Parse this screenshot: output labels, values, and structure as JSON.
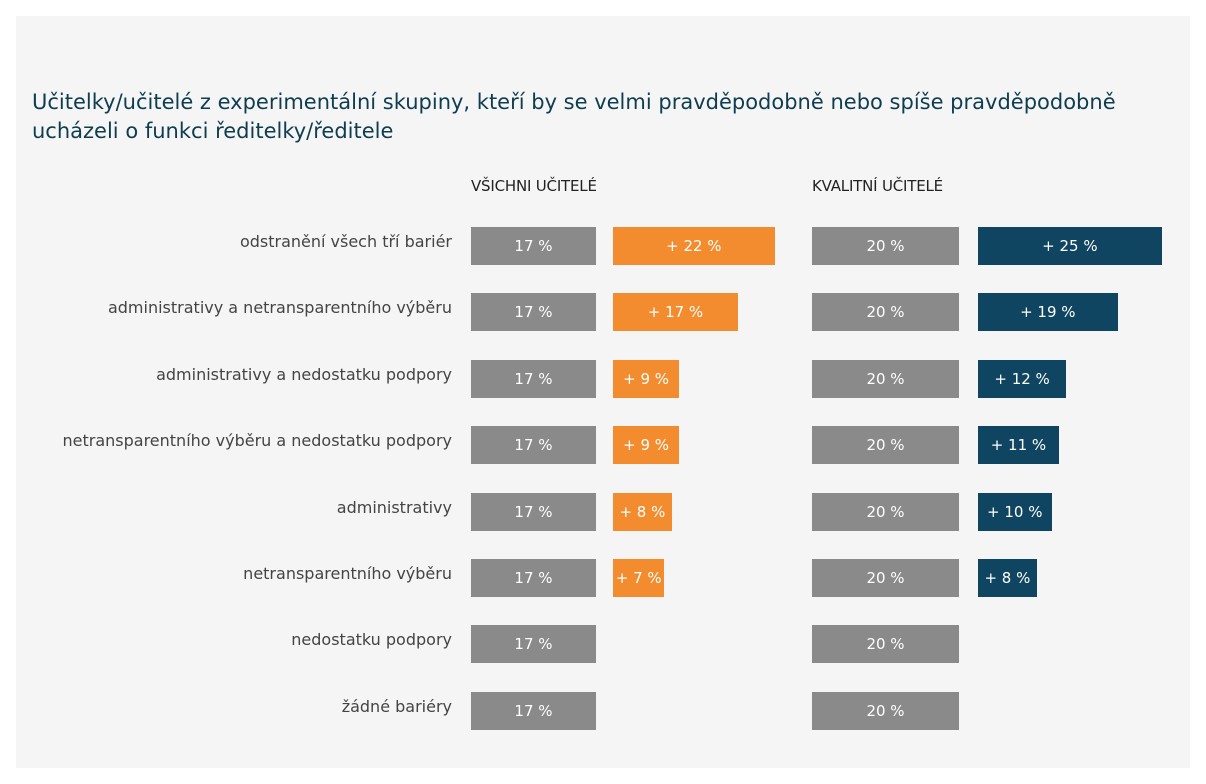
{
  "chart_data": {
    "type": "bar",
    "orientation": "horizontal",
    "title": "Učitelky/učitelé z experimentální skupiny, kteří by se velmi pravděpodobně nebo spíše pravděpodobně ucházeli o funkci ředitelky/ředitele",
    "categories": [
      "odstranění všech tří bariér",
      "administrativy a netransparentního výběru",
      "administrativy a nedostatku podpory",
      "netransparentního výběru a nedostatku podpory",
      "administrativy",
      "netransparentního výběru",
      "nedostatku podpory",
      "žádné bariéry"
    ],
    "panels": [
      {
        "title": "VŠICHNI UČITELÉ",
        "series": [
          {
            "color": "#8a8a8a",
            "values": [
              17,
              17,
              17,
              17,
              17,
              17,
              17,
              17
            ],
            "value_labels": [
              "17 %",
              "17 %",
              "17 %",
              "17 %",
              "17 %",
              "17 %",
              "17 %",
              "17 %"
            ]
          },
          {
            "color": "#f28c2e",
            "values": [
              22,
              17,
              9,
              9,
              8,
              7,
              null,
              null
            ],
            "value_labels": [
              "+ 22 %",
              "+ 17 %",
              "+ 9 %",
              "+ 9 %",
              "+ 8 %",
              "+ 7 %",
              null,
              null
            ]
          }
        ]
      },
      {
        "title": "KVALITNÍ UČITELÉ",
        "series": [
          {
            "color": "#8a8a8a",
            "values": [
              20,
              20,
              20,
              20,
              20,
              20,
              20,
              20
            ],
            "value_labels": [
              "20 %",
              "20 %",
              "20 %",
              "20 %",
              "20 %",
              "20 %",
              "20 %",
              "20 %"
            ]
          },
          {
            "color": "#0f4560",
            "values": [
              25,
              19,
              12,
              11,
              10,
              8,
              null,
              null
            ],
            "value_labels": [
              "+ 25 %",
              "+ 19 %",
              "+ 12 %",
              "+ 11 %",
              "+ 10 %",
              "+ 8 %",
              null,
              null
            ]
          }
        ]
      }
    ]
  }
}
